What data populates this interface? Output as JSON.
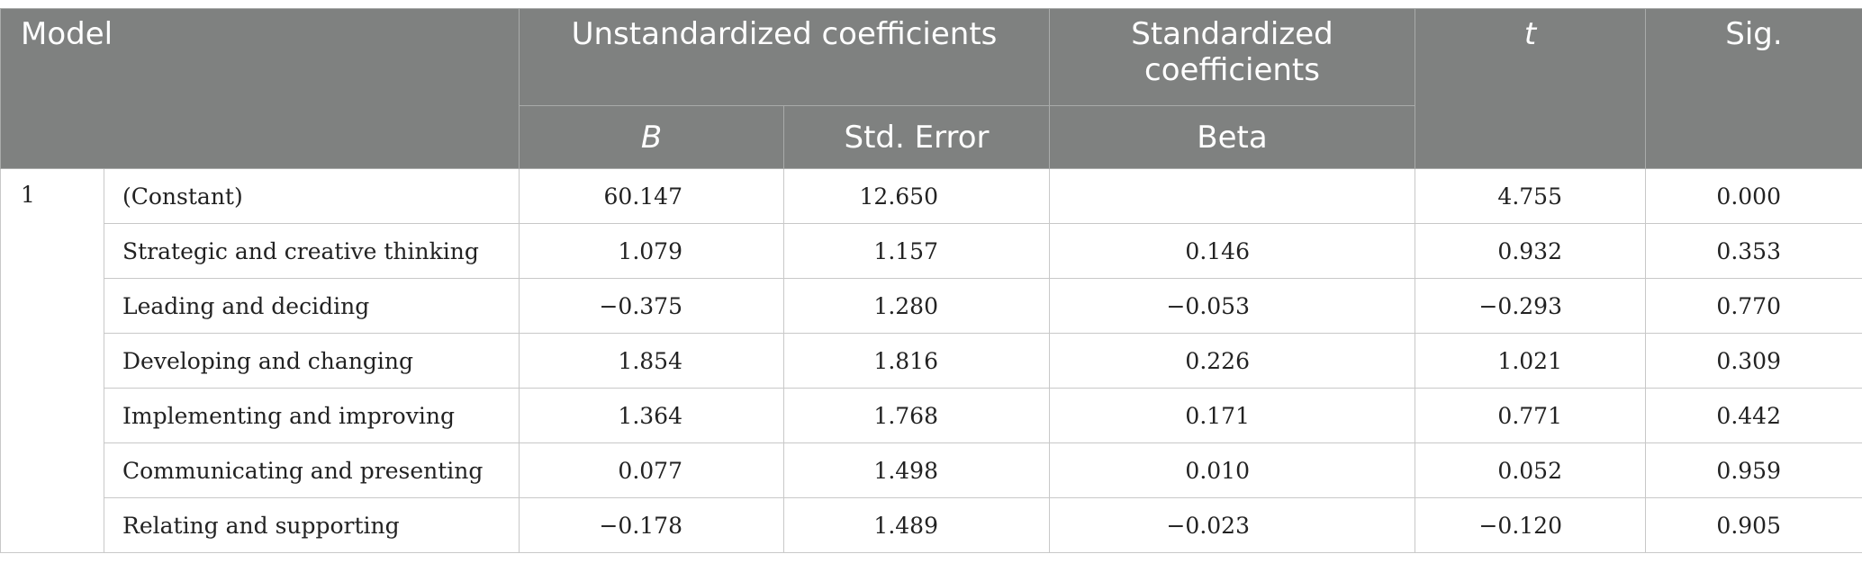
{
  "table": {
    "header": {
      "model": "Model",
      "unstandardized": "Unstandardized coefficients",
      "standardized": "Standardized coefficients",
      "t": "t",
      "sig": "Sig.",
      "b": "B",
      "std_error": "Std. Error",
      "beta": "Beta"
    },
    "model_number": "1",
    "rows": [
      [
        "(Constant)",
        "60.147",
        "12.650",
        null,
        "4.755",
        "0.000"
      ],
      [
        "Strategic and creative thinking",
        "1.079",
        "1.157",
        "0.146",
        "0.932",
        "0.353"
      ],
      [
        "Leading and deciding",
        "−0.375",
        "1.280",
        "−0.053",
        "−0.293",
        "0.770"
      ],
      [
        "Developing and changing",
        "1.854",
        "1.816",
        "0.226",
        "1.021",
        "0.309"
      ],
      [
        "Implementing and improving",
        "1.364",
        "1.768",
        "0.171",
        "0.771",
        "0.442"
      ],
      [
        "Communicating and presenting",
        "0.077",
        "1.498",
        "0.010",
        "0.052",
        "0.959"
      ],
      [
        "Relating and supporting",
        "−0.178",
        "1.489",
        "−0.023",
        "−0.120",
        "0.905"
      ]
    ]
  }
}
